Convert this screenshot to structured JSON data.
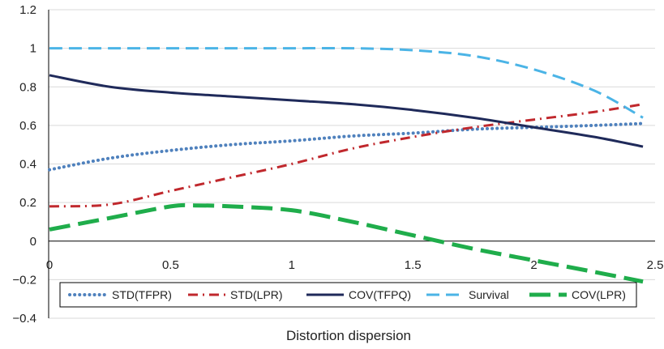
{
  "chart_data": {
    "type": "line",
    "title": "",
    "xlabel": "Distortion dispersion",
    "ylabel": "",
    "xlim": [
      0,
      2.5
    ],
    "ylim": [
      -0.4,
      1.2
    ],
    "x_ticks": [
      "0",
      "0.5",
      "1",
      "1.5",
      "2",
      "2.5"
    ],
    "y_ticks": [
      "1.2",
      "1",
      "0.8",
      "0.6",
      "0.4",
      "0.2",
      "0",
      "−0.2",
      "−0.4"
    ],
    "x_tick_values": [
      0,
      0.5,
      1,
      1.5,
      2,
      2.5
    ],
    "y_tick_values": [
      1.2,
      1,
      0.8,
      0.6,
      0.4,
      0.2,
      0,
      -0.2,
      -0.4
    ],
    "grid": "horizontal",
    "legend_position": "bottom",
    "series": [
      {
        "name": "STD(TFPR)",
        "color": "#4f81bd",
        "style": "dotted",
        "x": [
          0,
          0.25,
          0.5,
          0.75,
          1,
          1.25,
          1.5,
          1.75,
          2,
          2.25,
          2.45
        ],
        "y": [
          0.37,
          0.43,
          0.47,
          0.5,
          0.52,
          0.545,
          0.56,
          0.58,
          0.59,
          0.6,
          0.61
        ]
      },
      {
        "name": "STD(LPR)",
        "color": "#c0282d",
        "style": "dashdot",
        "x": [
          0,
          0.25,
          0.5,
          0.75,
          1,
          1.25,
          1.5,
          1.75,
          2,
          2.25,
          2.45
        ],
        "y": [
          0.18,
          0.19,
          0.26,
          0.33,
          0.4,
          0.48,
          0.54,
          0.59,
          0.63,
          0.67,
          0.71
        ]
      },
      {
        "name": "COV(TFPQ)",
        "color": "#1f2a5a",
        "style": "solid",
        "x": [
          0,
          0.25,
          0.5,
          0.75,
          1,
          1.25,
          1.5,
          1.75,
          2,
          2.25,
          2.45
        ],
        "y": [
          0.86,
          0.8,
          0.77,
          0.75,
          0.73,
          0.71,
          0.68,
          0.64,
          0.59,
          0.54,
          0.49
        ]
      },
      {
        "name": "Survival",
        "color": "#4bb4e6",
        "style": "dashed",
        "x": [
          0,
          0.25,
          0.5,
          0.75,
          1,
          1.25,
          1.5,
          1.75,
          2,
          2.25,
          2.45
        ],
        "y": [
          1.0,
          1.0,
          1.0,
          1.0,
          1.0,
          1.0,
          0.99,
          0.96,
          0.89,
          0.78,
          0.64
        ]
      },
      {
        "name": "COV(LPR)",
        "color": "#1fad4b",
        "style": "longdash",
        "x": [
          0,
          0.25,
          0.5,
          0.6,
          0.75,
          1,
          1.25,
          1.5,
          1.75,
          2,
          2.25,
          2.45
        ],
        "y": [
          0.06,
          0.12,
          0.18,
          0.185,
          0.18,
          0.16,
          0.1,
          0.03,
          -0.04,
          -0.1,
          -0.16,
          -0.21
        ]
      }
    ]
  }
}
